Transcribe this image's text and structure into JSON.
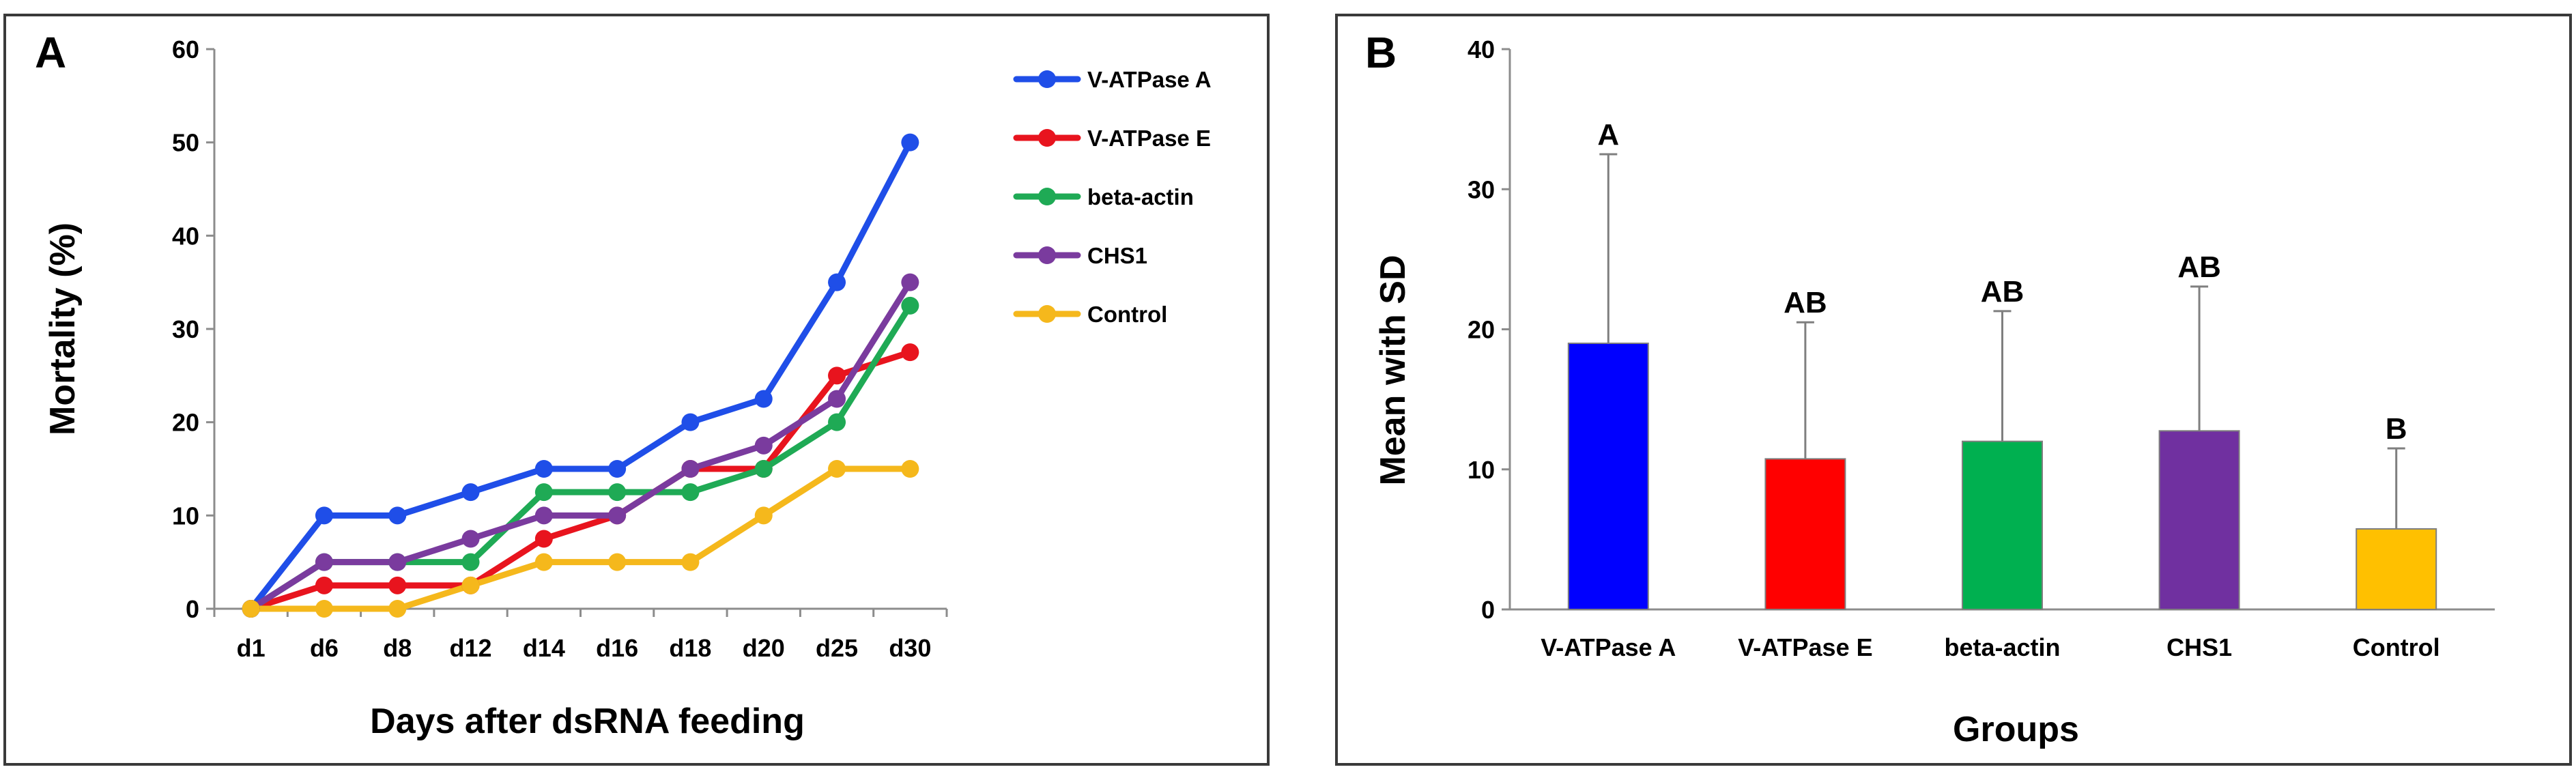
{
  "chart_data": [
    {
      "panel_label": "A",
      "type": "line",
      "title": "",
      "xlabel": "Days after dsRNA feeding",
      "ylabel": "Mortality (%)",
      "categories": [
        "d1",
        "d6",
        "d8",
        "d12",
        "d14",
        "d16",
        "d18",
        "d20",
        "d25",
        "d30"
      ],
      "ylim": [
        0,
        60
      ],
      "yticks": [
        0,
        10,
        20,
        30,
        40,
        50,
        60
      ],
      "legend_position": "top-right",
      "series": [
        {
          "name": "V-ATPase A",
          "color": "#1f4ee8",
          "values": [
            0,
            10,
            10,
            12.5,
            15,
            15,
            20,
            22.5,
            35,
            50
          ]
        },
        {
          "name": "V-ATPase E",
          "color": "#e8141e",
          "values": [
            0,
            2.5,
            2.5,
            2.5,
            7.5,
            10,
            15,
            15,
            25,
            27.5
          ]
        },
        {
          "name": "beta-actin",
          "color": "#1faa55",
          "values": [
            0,
            5,
            5,
            5,
            12.5,
            12.5,
            12.5,
            15,
            20,
            32.5
          ]
        },
        {
          "name": "CHS1",
          "color": "#7a3b9e",
          "values": [
            0,
            5,
            5,
            7.5,
            10,
            10,
            15,
            17.5,
            22.5,
            35
          ]
        },
        {
          "name": "Control",
          "color": "#f5b81c",
          "values": [
            0,
            0,
            0,
            2.5,
            5,
            5,
            5,
            10,
            15,
            15
          ]
        }
      ]
    },
    {
      "panel_label": "B",
      "type": "bar",
      "title": "",
      "xlabel": "Groups",
      "ylabel": "Mean with SD",
      "categories": [
        "V-ATPase A",
        "V-ATPase E",
        "beta-actin",
        "CHS1",
        "Control"
      ],
      "values": [
        19,
        10.75,
        12,
        12.75,
        5.75
      ],
      "sd": [
        13.5,
        9.75,
        9.3,
        10.3,
        5.75
      ],
      "significance": [
        "A",
        "AB",
        "AB",
        "AB",
        "B"
      ],
      "colors": [
        "#0000ff",
        "#ff0000",
        "#00b050",
        "#7030a0",
        "#ffc000"
      ],
      "ylim": [
        0,
        40
      ],
      "yticks": [
        0,
        10,
        20,
        30,
        40
      ]
    }
  ]
}
